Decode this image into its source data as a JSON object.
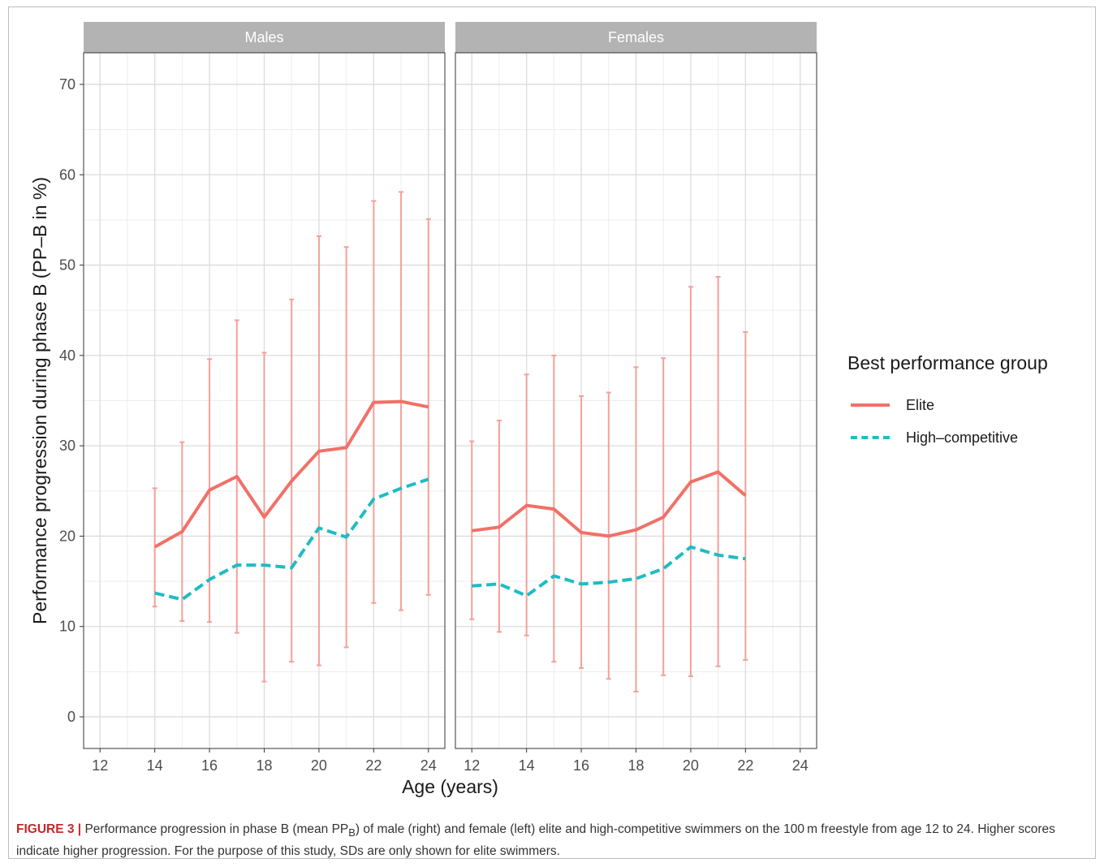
{
  "chart_data": {
    "type": "line",
    "xlabel": "Age (years)",
    "ylabel": "Performance progression during phase B (PP–B in %)",
    "x_ticks": [
      12,
      14,
      16,
      18,
      20,
      22,
      24
    ],
    "y_ticks": [
      0,
      10,
      20,
      30,
      40,
      50,
      60,
      70
    ],
    "xlim": [
      11.4,
      24.6
    ],
    "ylim": [
      -3.5,
      73.5
    ],
    "grid": true,
    "legend_position": "right",
    "legend_title": "Best performance group",
    "legend_entries": [
      {
        "label": "Elite",
        "color": "#f07168",
        "style": "solid"
      },
      {
        "label": "High–competitive",
        "color": "#1fbcc3",
        "style": "dashed"
      }
    ],
    "panels": [
      {
        "title": "Males",
        "series": [
          {
            "name": "Elite",
            "color": "#f07168",
            "style": "solid",
            "x": [
              14,
              15,
              16,
              17,
              18,
              19,
              20,
              21,
              22,
              23,
              24
            ],
            "y": [
              18.8,
              20.5,
              25.1,
              26.6,
              22.1,
              26.1,
              29.4,
              29.8,
              34.8,
              34.9,
              34.3
            ]
          },
          {
            "name": "High–competitive",
            "color": "#1fbcc3",
            "style": "dashed",
            "x": [
              14,
              15,
              16,
              17,
              18,
              19,
              20,
              21,
              22,
              23,
              24
            ],
            "y": [
              13.7,
              13.0,
              15.2,
              16.8,
              16.8,
              16.5,
              20.9,
              19.9,
              24.1,
              25.3,
              26.3
            ]
          }
        ],
        "error_bars": {
          "series": "Elite",
          "color": "#f4a09a",
          "x": [
            14,
            15,
            16,
            17,
            18,
            19,
            20,
            21,
            22,
            23,
            24
          ],
          "lower": [
            12.2,
            10.6,
            10.5,
            9.3,
            3.9,
            6.1,
            5.7,
            7.7,
            12.6,
            11.8,
            13.5
          ],
          "upper": [
            25.3,
            30.4,
            39.6,
            43.9,
            40.3,
            46.2,
            53.2,
            52.0,
            57.1,
            58.1,
            55.1
          ]
        }
      },
      {
        "title": "Females",
        "series": [
          {
            "name": "Elite",
            "color": "#f07168",
            "style": "solid",
            "x": [
              12,
              13,
              14,
              15,
              16,
              17,
              18,
              19,
              20,
              21,
              22
            ],
            "y": [
              20.6,
              21.0,
              23.4,
              23.0,
              20.4,
              20.0,
              20.7,
              22.1,
              26.0,
              27.1,
              24.5
            ]
          },
          {
            "name": "High–competitive",
            "color": "#1fbcc3",
            "style": "dashed",
            "x": [
              12,
              13,
              14,
              15,
              16,
              17,
              18,
              19,
              20,
              21,
              22
            ],
            "y": [
              14.5,
              14.7,
              13.4,
              15.6,
              14.7,
              14.9,
              15.3,
              16.4,
              18.8,
              17.9,
              17.5
            ]
          }
        ],
        "error_bars": {
          "series": "Elite",
          "color": "#f4a09a",
          "x": [
            12,
            13,
            14,
            15,
            16,
            17,
            18,
            19,
            20,
            21,
            22
          ],
          "lower": [
            10.8,
            9.4,
            9.0,
            6.1,
            5.4,
            4.2,
            2.8,
            4.6,
            4.5,
            5.6,
            6.3
          ],
          "upper": [
            30.5,
            32.8,
            37.9,
            40.0,
            35.5,
            35.9,
            38.7,
            39.7,
            47.6,
            48.7,
            42.6
          ]
        }
      }
    ]
  },
  "legend": {
    "title": "Best performance group",
    "items": [
      "Elite",
      "High–competitive"
    ]
  },
  "caption": {
    "label": "FIGURE 3 |",
    "text": "Performance progression in phase B (mean PPʙ) of male (right) and female (left) elite and high-competitive swimmers on the 100 m freestyle from age 12 to 24. Higher scores indicate higher progression. For the purpose of this study, SDs are only shown for elite swimmers."
  }
}
